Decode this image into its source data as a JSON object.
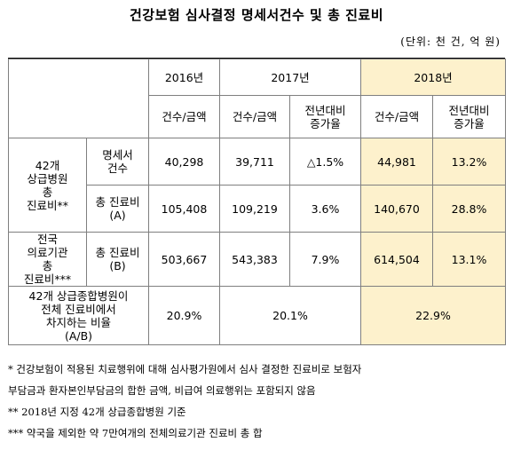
{
  "title": "건강보험 심사결정 명세서건수 및 총 진료비",
  "unit": "(단위: 천 건, 억 원)",
  "header": {
    "years": [
      "2016년",
      "2017년",
      "2018년"
    ],
    "count_amount": "건수/금액",
    "yoy_line1": "전년대비",
    "yoy_line2": "증가율"
  },
  "rows": {
    "group1_label": [
      "42개",
      "상급병원",
      "총",
      "진료비**"
    ],
    "claims_label": [
      "명세서",
      "건수"
    ],
    "claims": {
      "y2016": "40,298",
      "y2017": "39,711",
      "y2017_rate": "△1.5%",
      "y2018": "44,981",
      "y2018_rate": "13.2%"
    },
    "total_a_label": [
      "총 진료비",
      "(A)"
    ],
    "total_a": {
      "y2016": "105,408",
      "y2017": "109,219",
      "y2017_rate": "3.6%",
      "y2018": "140,670",
      "y2018_rate": "28.8%"
    },
    "group2_label": [
      "전국",
      "의료기관",
      "총",
      "진료비***"
    ],
    "total_b_label": [
      "총 진료비",
      "(B)"
    ],
    "total_b": {
      "y2016": "503,667",
      "y2017": "543,383",
      "y2017_rate": "7.9%",
      "y2018": "614,504",
      "y2018_rate": "13.1%"
    },
    "ratio_label": [
      "42개 상급종합병원이",
      "전체 진료비에서",
      "차지하는 비율",
      "(A/B)"
    ],
    "ratio": {
      "y2016": "20.9%",
      "y2017": "20.1%",
      "y2018": "22.9%"
    }
  },
  "notes": [
    "* 건강보험이 적용된 치료행위에 대해 심사평가원에서 심사 결정한 진료비로 보험자",
    "부담금과 환자본인부담금의 합한 금액, 비급여 의료행위는 포함되지 않음",
    "** 2018년 지정 42개 상급종합병원 기준",
    "*** 약국을 제외한 약 7만여개의 전체의료기관 진료비 총 합"
  ],
  "colors": {
    "highlight": "#fdf1cc",
    "border": "#7f7f7f"
  }
}
